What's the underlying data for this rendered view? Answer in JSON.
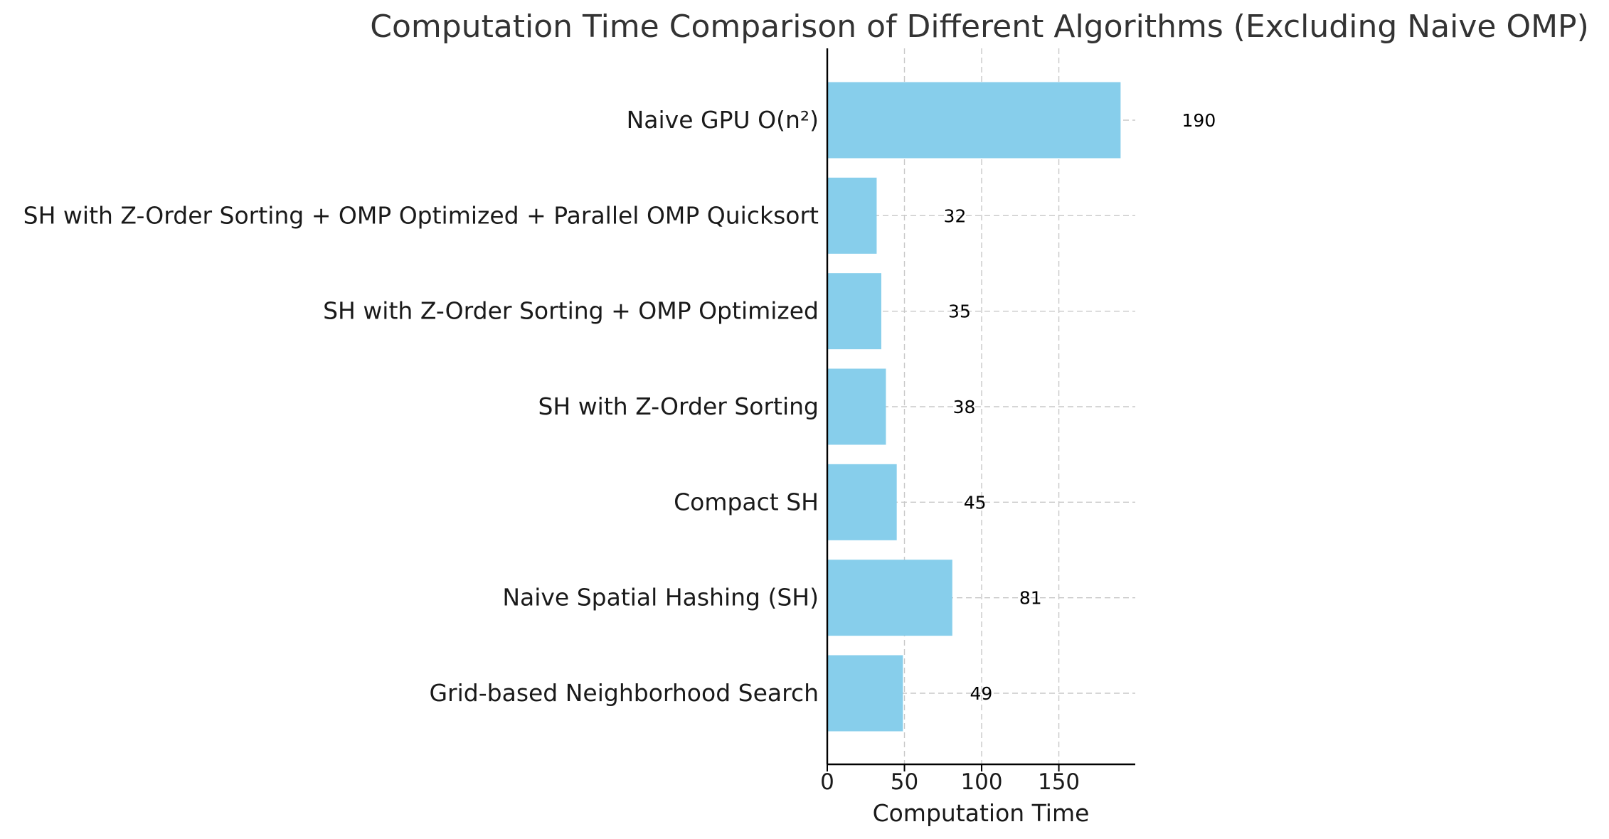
{
  "chart_data": {
    "type": "bar",
    "orientation": "horizontal",
    "title": "Computation Time Comparison of Different Algorithms (Excluding Naive OMP)",
    "xlabel": "Computation Time",
    "ylabel": "",
    "categories": [
      "Grid-based Neighborhood Search",
      "Naive Spatial Hashing (SH)",
      "Compact SH",
      "SH with Z-Order Sorting",
      "SH with Z-Order Sorting + OMP Optimized",
      "SH with Z-Order Sorting + OMP Optimized + Parallel OMP Quicksort",
      "Naive GPU O(n²)"
    ],
    "values": [
      49,
      81,
      45,
      38,
      35,
      32,
      190
    ],
    "data_labels": [
      "49",
      "81",
      "45",
      "38",
      "35",
      "32",
      "190"
    ],
    "xlim": [
      0,
      199.5
    ],
    "xticks": [
      0,
      50,
      100,
      150
    ],
    "xtick_labels": [
      "0",
      "50",
      "100",
      "150"
    ],
    "bar_color": "#87CEEB",
    "grid": true,
    "legend": "none"
  }
}
